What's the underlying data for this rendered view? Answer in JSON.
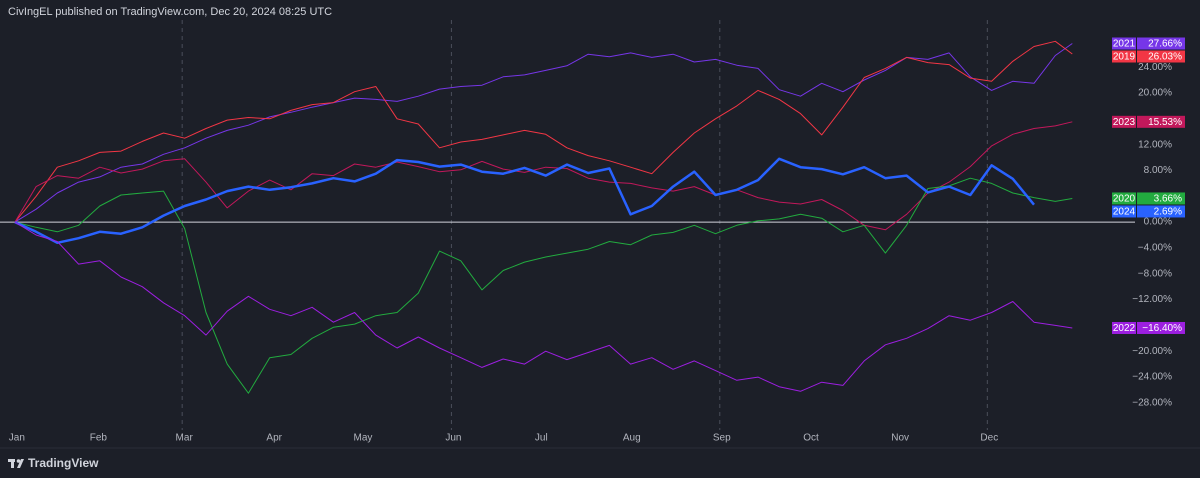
{
  "header": "CivIngEL published on TradingView.com, Dec 20, 2024 08:25 UTC",
  "footer": {
    "brand": "TradingView"
  },
  "chart_data": {
    "type": "line",
    "x": [
      0,
      5,
      10,
      15,
      20,
      25,
      30,
      35,
      40,
      45,
      50,
      55,
      60,
      65,
      70,
      75,
      80,
      85,
      90,
      95,
      100,
      105,
      110,
      115,
      120,
      125,
      130,
      135,
      140,
      145,
      150,
      155,
      160,
      165,
      170,
      175,
      180,
      185,
      190,
      195,
      200,
      205,
      210,
      215,
      220,
      225,
      230,
      235,
      240,
      245,
      249
    ],
    "xlim": [
      -3.5,
      252
    ],
    "xticks": [
      {
        "value": 0,
        "label": "Jan"
      },
      {
        "value": 19.2,
        "label": "Feb"
      },
      {
        "value": 39.4,
        "label": "Mar"
      },
      {
        "value": 60.6,
        "label": "Apr"
      },
      {
        "value": 81.5,
        "label": "May"
      },
      {
        "value": 102.8,
        "label": "Jun"
      },
      {
        "value": 123.5,
        "label": "Jul"
      },
      {
        "value": 144.8,
        "label": "Aug"
      },
      {
        "value": 166,
        "label": "Sep"
      },
      {
        "value": 187,
        "label": "Oct"
      },
      {
        "value": 208,
        "label": "Nov"
      },
      {
        "value": 229,
        "label": "Dec"
      }
    ],
    "ylim": [
      -32.2,
      31.3
    ],
    "yticks": [
      {
        "value": 24,
        "label": "24.00%"
      },
      {
        "value": 20,
        "label": "20.00%"
      },
      {
        "value": 12,
        "label": "12.00%"
      },
      {
        "value": 8,
        "label": "8.00%"
      },
      {
        "value": 0,
        "label": "0.00%"
      },
      {
        "value": -4,
        "label": "−4.00%"
      },
      {
        "value": -8,
        "label": "−8.00%"
      },
      {
        "value": -12,
        "label": "−12.00%"
      },
      {
        "value": -20,
        "label": "−20.00%"
      },
      {
        "value": -24,
        "label": "−24.00%"
      },
      {
        "value": -28,
        "label": "−28.00%"
      }
    ],
    "zero_line": true,
    "series": [
      {
        "name": "2021",
        "color": "#7636e8",
        "line_width": 1,
        "last_value_label": "27.66%",
        "values": [
          0,
          2,
          4.5,
          6.2,
          7,
          8.5,
          9,
          10.5,
          11.5,
          13,
          14.2,
          15,
          16.3,
          17,
          17.8,
          18.5,
          19.2,
          19,
          18.7,
          19.5,
          20.6,
          21,
          21.2,
          22.5,
          22.8,
          23.5,
          24.2,
          26,
          25.6,
          26.2,
          25.5,
          26,
          24.8,
          25.2,
          24.3,
          23.8,
          20.5,
          19.5,
          21.5,
          20.2,
          22,
          23.5,
          25.5,
          25.2,
          26.2,
          22.5,
          20.4,
          21.8,
          21.5,
          25.8,
          27.66
        ]
      },
      {
        "name": "2019",
        "color": "#f23645",
        "line_width": 1,
        "last_value_label": "26.03%",
        "values": [
          0,
          4,
          8.5,
          9.5,
          10.8,
          11,
          12.5,
          13.8,
          13,
          14.5,
          15.8,
          16.2,
          16,
          17.3,
          18.2,
          18.5,
          20.2,
          21,
          16,
          15.2,
          11.5,
          12.4,
          12.8,
          13.5,
          14.2,
          13.6,
          11.5,
          10.3,
          9.5,
          8.5,
          7.5,
          10.8,
          13.8,
          16,
          18,
          20.4,
          19,
          16.8,
          13.5,
          17.8,
          22.4,
          23.8,
          25.5,
          24.7,
          24.4,
          22.3,
          21.8,
          24.9,
          27.2,
          28,
          26.03
        ]
      },
      {
        "name": "2023",
        "color": "#c2185b",
        "line_width": 1,
        "last_value_label": "15.53%",
        "values": [
          0,
          5.5,
          7.2,
          6.8,
          8.5,
          7.6,
          8.2,
          9.5,
          9.8,
          6.2,
          2.2,
          4.8,
          6.5,
          5,
          7.5,
          7.2,
          9,
          8.5,
          9.3,
          8.6,
          7.8,
          8.1,
          9.4,
          8.2,
          7.7,
          8.5,
          8.3,
          6.8,
          6.2,
          6,
          5.3,
          4.8,
          5.5,
          4.2,
          5,
          3.8,
          3.1,
          2.8,
          3.5,
          1.8,
          -0.5,
          -1.2,
          1.2,
          4.5,
          6.2,
          8.6,
          11.8,
          13.6,
          14.5,
          14.9,
          15.53
        ]
      },
      {
        "name": "2020",
        "color": "#22ab3f",
        "line_width": 1,
        "last_value_label": "3.66%",
        "values": [
          0,
          -0.8,
          -1.5,
          -0.5,
          2.5,
          4.2,
          4.5,
          4.8,
          -1,
          -14,
          -22,
          -26.5,
          -21,
          -20.5,
          -18,
          -16.3,
          -15.8,
          -14.5,
          -14,
          -11,
          -4.5,
          -6,
          -10.5,
          -7.5,
          -6.2,
          -5.4,
          -4.8,
          -4.2,
          -3,
          -3.5,
          -2,
          -1.6,
          -0.5,
          -1.8,
          -0.5,
          0.2,
          0.5,
          1.2,
          0.6,
          -1.5,
          -0.5,
          -4.8,
          -0.5,
          5.2,
          5.6,
          6.8,
          6,
          4.5,
          3.8,
          3.2,
          3.66
        ]
      },
      {
        "name": "2024",
        "color": "#2962ff",
        "line_width": 2.5,
        "last_value_label": "2.69%",
        "values": [
          0,
          -1.5,
          -3.2,
          -2.5,
          -1.5,
          -1.8,
          -0.8,
          1,
          2.5,
          3.5,
          4.8,
          5.5,
          5,
          5.4,
          6,
          6.8,
          6.3,
          7.5,
          9.6,
          9.3,
          8.6,
          8.9,
          7.8,
          7.5,
          8.4,
          7.2,
          8.9,
          7.6,
          8.3,
          1.2,
          2.5,
          5.5,
          7.8,
          4.2,
          5,
          6.5,
          9.8,
          8.5,
          8.2,
          7.4,
          8.5,
          6.8,
          7.2,
          4.6,
          5.5,
          4.2,
          8.8,
          6.7,
          2.69,
          null,
          null
        ]
      },
      {
        "name": "2022",
        "color": "#9c1fe0",
        "line_width": 1,
        "last_value_label": "−16.40%",
        "values": [
          0,
          -2,
          -3,
          -6.5,
          -6,
          -8.5,
          -10,
          -12.5,
          -14.5,
          -17.5,
          -13.8,
          -11.5,
          -13.5,
          -14.5,
          -13.2,
          -15.5,
          -14,
          -17.5,
          -19.5,
          -17.8,
          -19.5,
          -21,
          -22.5,
          -21.2,
          -22,
          -20,
          -21.3,
          -20.2,
          -19.1,
          -22,
          -21,
          -22.8,
          -21.5,
          -23,
          -24.5,
          -24,
          -25.5,
          -26.2,
          -24.8,
          -25.3,
          -21.5,
          -19,
          -18,
          -16.5,
          -14.5,
          -15.2,
          -14,
          -12.3,
          -15.5,
          -16,
          -16.4
        ]
      }
    ]
  }
}
